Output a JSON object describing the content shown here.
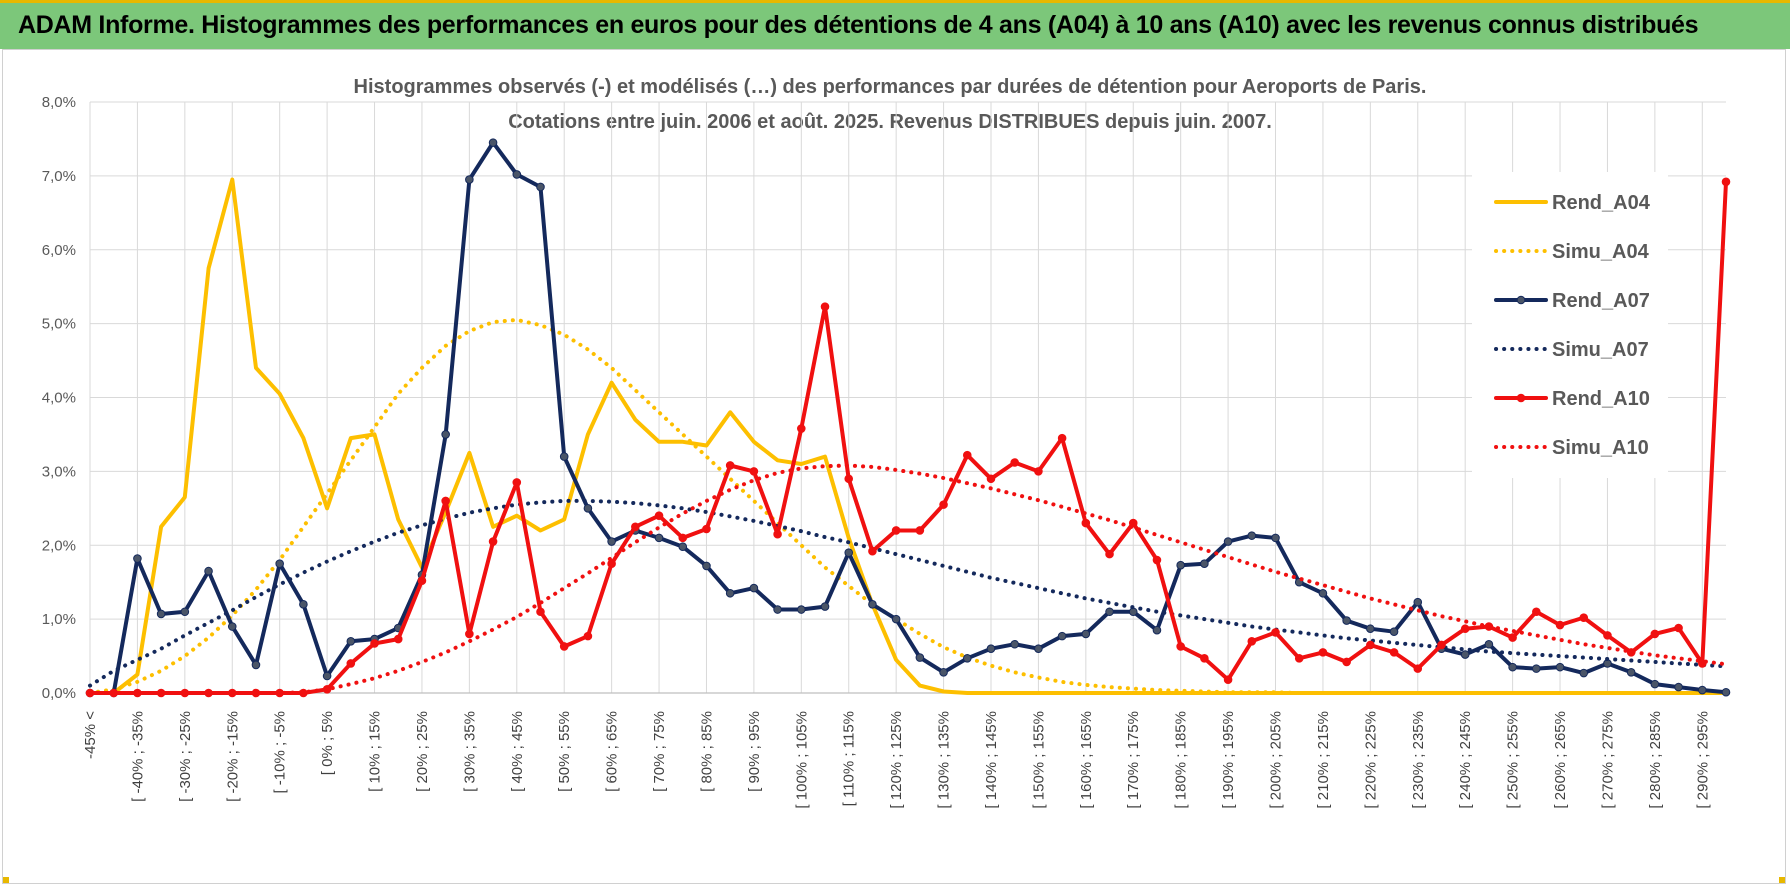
{
  "banner": {
    "title": "ADAM Informe. Histogrammes des performances en euros pour des détentions de 4 ans (A04) à 10 ans (A10) avec les revenus connus distribués"
  },
  "colors": {
    "banner_bg": "#7cc77a",
    "accent": "#e8b800",
    "A04": "#fdbf00",
    "A07": "#14295c",
    "A10": "#f01010"
  },
  "chart_data": {
    "type": "line",
    "title": "Histogrammes observés (-) et modélisés (…) des performances par durées de détention pour Aeroports de Paris.",
    "subtitle": "Cotations entre juin. 2006 et août. 2025. Revenus DISTRIBUES depuis juin. 2007.",
    "ylim": [
      0,
      8
    ],
    "yticks": [
      "0,0%",
      "1,0%",
      "2,0%",
      "3,0%",
      "4,0%",
      "5,0%",
      "6,0%",
      "7,0%",
      "8,0%"
    ],
    "grid": true,
    "legend_position": "right",
    "x_labels": [
      "-45% <",
      "[ -40% ; -35%",
      "[ -30% ; -25%",
      "[ -20% ; -15%",
      "[ -10% ; -5%",
      "[ 0% ; 5%",
      "[ 10% ; 15%",
      "[ 20% ; 25%",
      "[ 30% ; 35%",
      "[ 40% ; 45%",
      "[ 50% ; 55%",
      "[ 60% ; 65%",
      "[ 70% ; 75%",
      "[ 80% ; 85%",
      "[ 90% ; 95%",
      "[ 100% ; 105%",
      "[ 110% ; 115%",
      "[ 120% ; 125%",
      "[ 130% ; 135%",
      "[ 140% ; 145%",
      "[ 150% ; 155%",
      "[ 160% ; 165%",
      "[ 170% ; 175%",
      "[ 180% ; 185%",
      "[ 190% ; 195%",
      "[ 200% ; 205%",
      "[ 210% ; 215%",
      "[ 220% ; 225%",
      "[ 230% ; 235%",
      "[ 240% ; 245%",
      "[ 250% ; 255%",
      "[ 260% ; 265%",
      "[ 270% ; 275%",
      "[ 280% ; 285%",
      "[ 290% ; 295%"
    ],
    "series": [
      {
        "name": "Rend_A04",
        "style": "solid",
        "color": "#fdbf00",
        "marker": false,
        "values": [
          0,
          0,
          0.25,
          2.25,
          2.65,
          5.75,
          6.95,
          4.4,
          4.05,
          3.45,
          2.5,
          3.45,
          3.5,
          2.35,
          1.7,
          2.45,
          3.25,
          2.25,
          2.4,
          2.2,
          2.35,
          3.5,
          4.2,
          3.7,
          3.4,
          3.4,
          3.35,
          3.8,
          3.4,
          3.15,
          3.1,
          3.2,
          2.1,
          1.2,
          0.45,
          0.1,
          0.02,
          0,
          0,
          0,
          0,
          0,
          0,
          0,
          0,
          0,
          0,
          0,
          0,
          0,
          0,
          0,
          0,
          0,
          0,
          0,
          0,
          0,
          0,
          0,
          0,
          0,
          0,
          0,
          0,
          0,
          0,
          0,
          0,
          0
        ]
      },
      {
        "name": "Simu_A04",
        "style": "dotted",
        "color": "#fdbf00",
        "marker": false,
        "values": [
          0,
          0.05,
          0.15,
          0.3,
          0.5,
          0.75,
          1.05,
          1.4,
          1.8,
          2.25,
          2.7,
          3.15,
          3.6,
          4.05,
          4.4,
          4.7,
          4.9,
          5.02,
          5.05,
          4.98,
          4.85,
          4.65,
          4.4,
          4.1,
          3.8,
          3.5,
          3.2,
          2.9,
          2.6,
          2.3,
          2.0,
          1.7,
          1.45,
          1.2,
          1.0,
          0.8,
          0.62,
          0.48,
          0.37,
          0.28,
          0.21,
          0.15,
          0.11,
          0.08,
          0.06,
          0.04,
          0.03,
          0.02,
          0.01,
          0.01,
          0.01,
          0,
          0,
          0,
          0,
          0,
          0,
          0,
          0,
          0,
          0,
          0,
          0,
          0,
          0,
          0,
          0,
          0,
          0,
          0
        ]
      },
      {
        "name": "Rend_A07",
        "style": "solid",
        "color": "#14295c",
        "marker": true,
        "values": [
          0,
          0,
          1.82,
          1.07,
          1.1,
          1.65,
          0.9,
          0.38,
          1.75,
          1.2,
          0.23,
          0.7,
          0.73,
          0.88,
          1.6,
          3.5,
          6.95,
          7.45,
          7.02,
          6.85,
          3.2,
          2.5,
          2.05,
          2.2,
          2.1,
          1.98,
          1.72,
          1.35,
          1.42,
          1.13,
          1.13,
          1.17,
          1.9,
          1.2,
          1.0,
          0.48,
          0.28,
          0.47,
          0.6,
          0.66,
          0.6,
          0.77,
          0.8,
          1.1,
          1.1,
          0.85,
          1.73,
          1.75,
          2.05,
          2.13,
          2.1,
          1.5,
          1.35,
          0.98,
          0.87,
          0.83,
          1.23,
          0.6,
          0.52,
          0.66,
          0.35,
          0.33,
          0.35,
          0.27,
          0.4,
          0.28,
          0.12,
          0.08,
          0.04,
          0.01
        ]
      },
      {
        "name": "Simu_A07",
        "style": "dotted",
        "color": "#14295c",
        "marker": false,
        "values": [
          0.1,
          0.3,
          0.45,
          0.6,
          0.78,
          0.95,
          1.12,
          1.3,
          1.47,
          1.63,
          1.78,
          1.92,
          2.05,
          2.17,
          2.27,
          2.36,
          2.44,
          2.5,
          2.55,
          2.58,
          2.6,
          2.6,
          2.59,
          2.57,
          2.54,
          2.5,
          2.45,
          2.39,
          2.33,
          2.26,
          2.19,
          2.11,
          2.04,
          1.96,
          1.88,
          1.8,
          1.72,
          1.64,
          1.56,
          1.49,
          1.42,
          1.35,
          1.28,
          1.22,
          1.16,
          1.1,
          1.05,
          1.0,
          0.95,
          0.9,
          0.86,
          0.82,
          0.78,
          0.74,
          0.71,
          0.68,
          0.65,
          0.62,
          0.59,
          0.56,
          0.54,
          0.52,
          0.5,
          0.48,
          0.46,
          0.44,
          0.42,
          0.4,
          0.38,
          0.36
        ]
      },
      {
        "name": "Rend_A10",
        "style": "solid",
        "color": "#f01010",
        "marker": true,
        "values": [
          0,
          0,
          0,
          0,
          0,
          0,
          0,
          0,
          0,
          0,
          0.05,
          0.4,
          0.67,
          0.73,
          1.52,
          2.6,
          0.8,
          2.05,
          2.85,
          1.1,
          0.63,
          0.77,
          1.75,
          2.25,
          2.4,
          2.1,
          2.22,
          3.08,
          3.0,
          2.15,
          3.58,
          5.23,
          2.9,
          1.92,
          2.2,
          2.2,
          2.55,
          3.22,
          2.9,
          3.12,
          3.0,
          3.45,
          2.3,
          1.88,
          2.3,
          1.8,
          0.63,
          0.47,
          0.18,
          0.7,
          0.82,
          0.47,
          0.55,
          0.42,
          0.65,
          0.55,
          0.33,
          0.65,
          0.87,
          0.9,
          0.75,
          1.1,
          0.92,
          1.02,
          0.78,
          0.55,
          0.8,
          0.88,
          0.4,
          6.92
        ]
      },
      {
        "name": "Simu_A10",
        "style": "dotted",
        "color": "#f01010",
        "marker": false,
        "values": [
          0,
          0,
          0,
          0,
          0,
          0,
          0,
          0,
          0,
          0.01,
          0.05,
          0.12,
          0.2,
          0.3,
          0.42,
          0.55,
          0.7,
          0.86,
          1.03,
          1.22,
          1.42,
          1.62,
          1.83,
          2.04,
          2.24,
          2.43,
          2.6,
          2.75,
          2.88,
          2.98,
          3.04,
          3.07,
          3.08,
          3.06,
          3.02,
          2.97,
          2.91,
          2.84,
          2.77,
          2.69,
          2.61,
          2.52,
          2.43,
          2.34,
          2.24,
          2.14,
          2.04,
          1.94,
          1.84,
          1.74,
          1.64,
          1.55,
          1.46,
          1.37,
          1.28,
          1.2,
          1.12,
          1.04,
          0.97,
          0.9,
          0.84,
          0.78,
          0.72,
          0.66,
          0.61,
          0.56,
          0.51,
          0.47,
          0.43,
          0.39
        ]
      }
    ]
  }
}
